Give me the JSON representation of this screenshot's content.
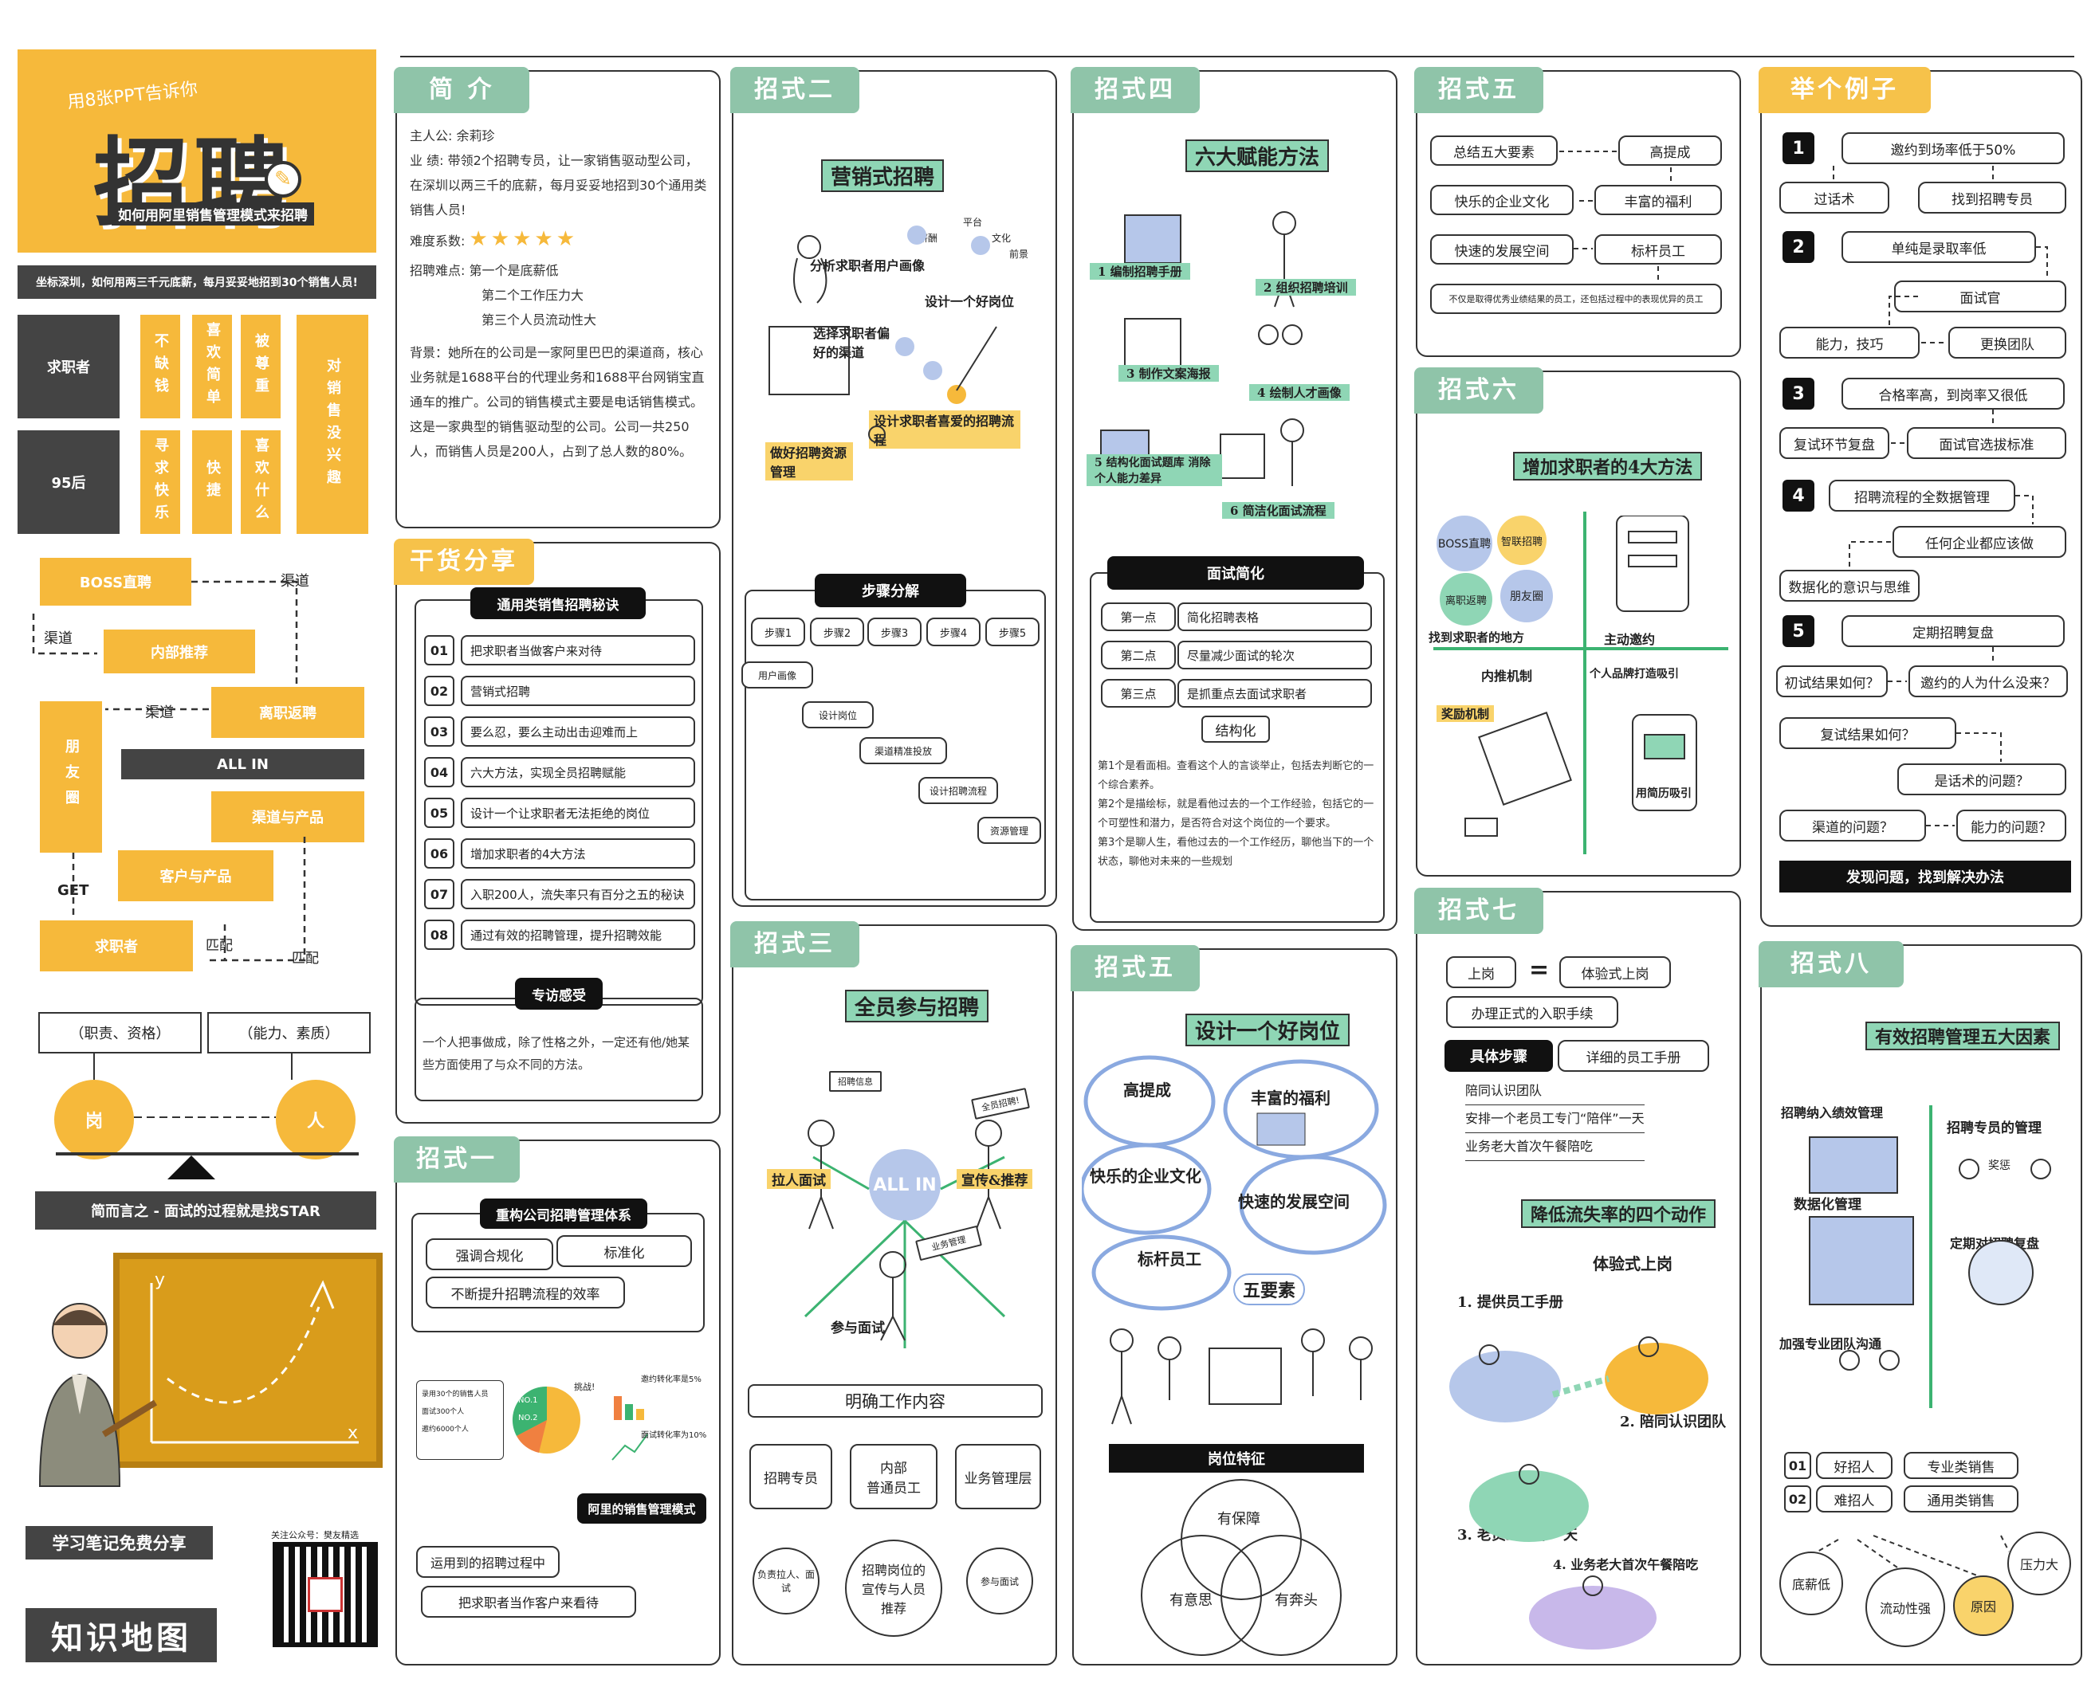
{
  "left": {
    "cover_small": "用8张PPT告诉你",
    "cover_big": "招聘",
    "cover_sub": "如何用阿里销售管理模式来招聘",
    "banner": "坐标深圳，如何用两三千元底薪，每月妥妥地招到30个销售人员!",
    "grid": {
      "row1_label": "求职者",
      "row2_label": "95后",
      "cols": [
        "不缺钱",
        "喜欢简单",
        "被尊重",
        "寻求快乐",
        "快捷",
        "喜欢什么"
      ],
      "right": "对销售没兴趣"
    },
    "flow": {
      "boss": "BOSS直聘",
      "qudao1": "渠道",
      "qudao2": "渠道",
      "qudao3": "渠道",
      "neibu": "内部推荐",
      "lizhi": "离职返聘",
      "friends": "朋友圈",
      "allin": "ALL IN",
      "channel_product": "渠道与产品",
      "customer_product": "客户与产品",
      "get": "GET",
      "jobseeker": "求职者",
      "match1": "匹配",
      "match2": "匹配"
    },
    "scale": {
      "left_label": "（职责、资格）",
      "right_label": "（能力、素质）",
      "left_ball": "岗",
      "right_ball": "人"
    },
    "star_bar": "简而言之 - 面试的过程就是找STAR",
    "board_y": "y",
    "board_x": "x",
    "share": "学习笔记免费分享",
    "qr_caption": "关注公众号：樊友精选",
    "map_title": "知识地图"
  },
  "intro": {
    "tab": "简  介",
    "lead_label": "主人公:",
    "lead": "余莉珍",
    "perf_label": "业    绩:",
    "perf": "带领2个招聘专员，让一家销售驱动型公司，在深圳以两三千的底薪，每月妥妥地招到30个通用类销售人员!",
    "diff_label": "难度系数:",
    "stars": "★★★★★",
    "hard_label": "招聘难点:",
    "hard": [
      "第一个是底薪低",
      "第二个工作压力大",
      "第三个人员流动性大"
    ],
    "bg": "背景：她所在的公司是一家阿里巴巴的渠道商，核心业务就是1688平台的代理业务和1688平台网销宝直通车的推广。公司的销售模式主要是电话销售模式。这是一家典型的销售驱动型的公司。公司一共250人，而销售人员是200人，占到了总人数的80%。"
  },
  "goods": {
    "tab": "干货分享",
    "title": "通用类销售招聘秘诀",
    "items": [
      {
        "n": "01",
        "t": "把求职者当做客户来对待"
      },
      {
        "n": "02",
        "t": "营销式招聘"
      },
      {
        "n": "03",
        "t": "要么忍，要么主动出击迎难而上"
      },
      {
        "n": "04",
        "t": "六大方法，实现全员招聘赋能"
      },
      {
        "n": "05",
        "t": "设计一个让求职者无法拒绝的岗位"
      },
      {
        "n": "06",
        "t": "增加求职者的4大方法"
      },
      {
        "n": "07",
        "t": "入职200人，流失率只有百分之五的秘诀"
      },
      {
        "n": "08",
        "t": "通过有效的招聘管理，提升招聘效能"
      }
    ],
    "feel_title": "专访感受",
    "feel": "一个人把事做成，除了性格之外，一定还有他/她某些方面使用了与众不同的方法。"
  },
  "m1": {
    "tab": "招式一",
    "title": "重构公司招聘管理体系",
    "b1": "强调合规化",
    "b2": "标准化",
    "b3": "不断提升招聘流程的效率",
    "list": [
      "录用30个的销售人员",
      "面试300个人",
      "邀约6000个人"
    ],
    "pie_labels": [
      "NO.1",
      "NO.2"
    ],
    "challenge": "挑战!",
    "rate1": "邀约转化率是5%",
    "rate2": "面试转化率为10%",
    "ali": "阿里的销售管理模式",
    "c1": "运用到的招聘过程中",
    "c2": "把求职者当作客户来看待"
  },
  "m2": {
    "tab": "招式二",
    "title": "营销式招聘",
    "notes": [
      "分析求职者用户画像",
      "设计一个好岗位",
      "选择求职者偏好的渠道",
      "设计求职者喜爱的招聘流程",
      "做好招聘资源管理"
    ],
    "tags": [
      "薪酬",
      "平台",
      "文化",
      "前景"
    ],
    "steps_title": "步骤分解",
    "steps": [
      "步骤1",
      "步骤2",
      "步骤3",
      "步骤4",
      "步骤5"
    ],
    "results": [
      "用户画像",
      "设计岗位",
      "渠道精准投放",
      "设计招聘流程",
      "资源管理"
    ]
  },
  "m3": {
    "tab": "招式三",
    "title": "全员参与招聘",
    "allin": "ALL IN",
    "notes": [
      "拉人面试",
      "宣传&推荐",
      "参与面试"
    ],
    "signs": [
      "招聘信息",
      "全员招聘!",
      "业务管理"
    ],
    "clarify": "明确工作内容",
    "roles": [
      "招聘专员",
      "内部\n普通员工",
      "业务管理层"
    ],
    "duties": [
      "负责拉人、面试",
      "招聘岗位的宣传与人员推荐",
      "参与面试"
    ]
  },
  "m4": {
    "tab": "招式四",
    "title": "六大赋能方法",
    "methods": [
      "1 编制招聘手册",
      "2 组织招聘培训",
      "3 制作文案海报",
      "4 绘制人才画像",
      "5 结构化面试题库 消除个人能力差异",
      "6 简洁化面试流程"
    ],
    "face_title": "面试简化",
    "points": [
      {
        "k": "第一点",
        "v": "简化招聘表格"
      },
      {
        "k": "第二点",
        "v": "尽量减少面试的轮次"
      },
      {
        "k": "第三点",
        "v": "是抓重点去面试求职者"
      }
    ],
    "struct": "结构化",
    "desc": "第1个是看面相。查看这个人的言谈举止，包括去判断它的一个综合素养。\n第2个是描绘标，就是看他过去的一个工作经验，包括它的一个可塑性和潜力，是否符合对这个岗位的一个要求。\n第3个是聊人生，看他过去的一个工作经历，聊他当下的一个状态，聊他对未来的一些规划"
  },
  "m5a": {
    "tab": "招式五",
    "title": "设计一个好岗位",
    "notes": [
      "高提成",
      "丰富的福利",
      "快乐的企业文化",
      "快速的发展空间",
      "标杆员工",
      "五要素"
    ],
    "post_title": "岗位特征",
    "venn": [
      "有保障",
      "有意思",
      "有奔头"
    ]
  },
  "m5b": {
    "tab": "招式五",
    "boxes": [
      "总结五大要素",
      "高提成",
      "快乐的企业文化",
      "丰富的福利",
      "快速的发展空间",
      "标杆员工"
    ],
    "note": "不仅是取得优秀业绩结果的员工，还包括过程中的表现优异的员工"
  },
  "m6": {
    "tab": "招式六",
    "title": "增加求职者的4大方法",
    "quad": [
      "找到求职者的地方",
      "主动邀约",
      "内推机制",
      "个人品牌打造吸引"
    ],
    "bubbles": [
      "BOSS直聘",
      "智联招聘",
      "离职返聘",
      "朋友圈",
      "奖励机制",
      "用简历吸引"
    ]
  },
  "m7": {
    "tab": "招式七",
    "b1": "上岗",
    "eq": "=",
    "b2": "体验式上岗",
    "b3": "办理正式的入职手续",
    "steps_label": "具体步骤",
    "manual": "详细的员工手册",
    "list": [
      "陪同认识团队",
      "安排一个老员工专门“陪伴”一天",
      "业务老大首次午餐陪吃"
    ],
    "title": "降低流失率的四个动作",
    "sub": "体验式上岗",
    "actions": [
      "1. 提供员工手册",
      "2. 陪同认识团队",
      "3. 老员工陪伴一天",
      "4. 业务老大首次午餐陪吃"
    ]
  },
  "ex": {
    "tab": "举个例子",
    "rows": [
      {
        "n": "1",
        "q": "邀约到场率低于50%"
      },
      {
        "n": "2",
        "q": "单纯是录取率低"
      },
      {
        "n": "3",
        "q": "合格率高，到岗率又很低"
      },
      {
        "n": "4",
        "q": "招聘流程的全数据管理"
      },
      {
        "n": "5",
        "q": "定期招聘复盘"
      }
    ],
    "b_hua": "过话术",
    "b_find": "找到招聘专员",
    "b_face": "面试官",
    "b_skill": "能力，技巧",
    "b_team": "更换团队",
    "b_review": "复试环节复盘",
    "b_std": "面试官选拔标准",
    "b_any": "任何企业都应该做",
    "b_data": "数据化的意识与思维",
    "q1": "初试结果如何？",
    "q2": "邀约的人为什么没来？",
    "q3": "复试结果如何？",
    "q4": "是话术的问题？",
    "q5": "渠道的问题？",
    "q6": "能力的问题？",
    "final": "发现问题，找到解决办法"
  },
  "m8": {
    "tab": "招式八",
    "title": "有效招聘管理五大因素",
    "factors": [
      "招聘纳入绩效管理",
      "招聘专员的管理",
      "数据化管理",
      "定期对招聘复盘",
      "加强专业团队沟通"
    ],
    "kinds": [
      {
        "n": "01",
        "k": "好招人",
        "v": "专业类销售"
      },
      {
        "n": "02",
        "k": "难招人",
        "v": "通用类销售"
      }
    ],
    "causes": [
      "底薪低",
      "流动性强",
      "原因",
      "压力大"
    ],
    "reward": "奖惩"
  }
}
